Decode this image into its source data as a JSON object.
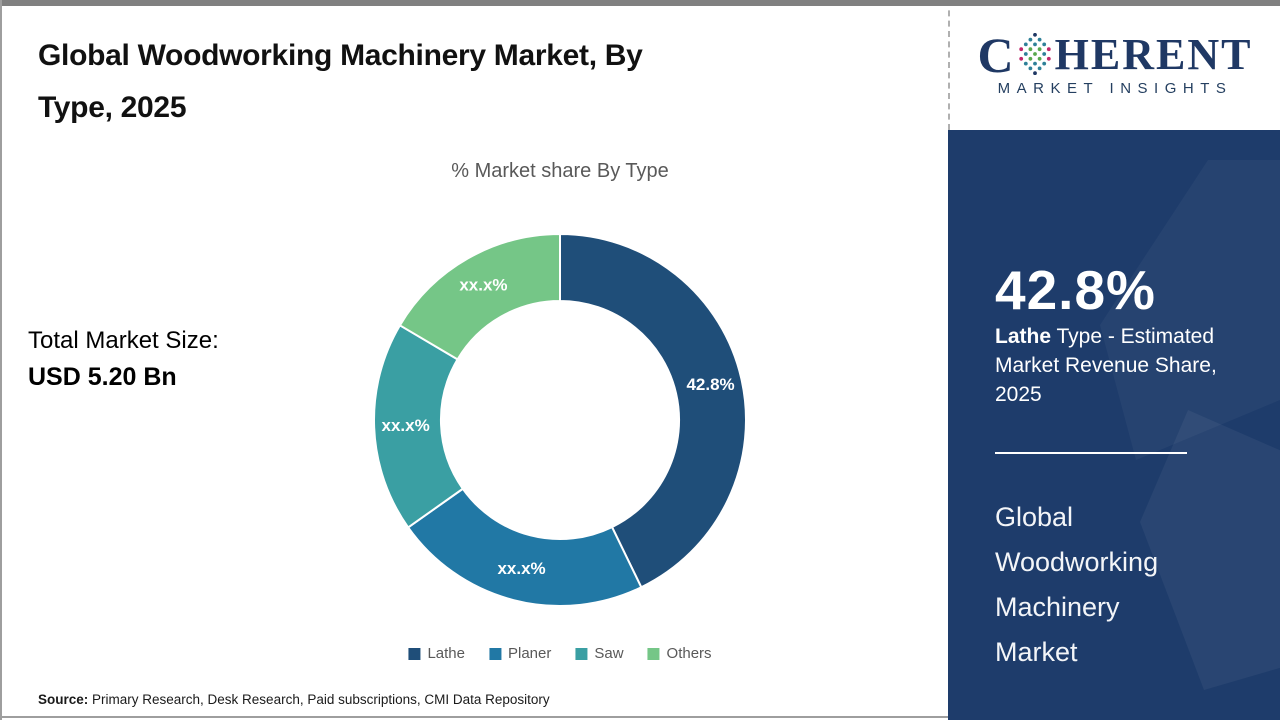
{
  "page": {
    "title_line1": "Global Woodworking Machinery Market, By",
    "title_line2": "Type, 2025"
  },
  "stats": {
    "total_label": "Total Market Size:",
    "total_value": "USD 5.20 Bn"
  },
  "chart_data": {
    "type": "pie",
    "subtype": "donut",
    "title": "% Market share By Type",
    "categories": [
      "Lathe",
      "Planer",
      "Saw",
      "Others"
    ],
    "series": [
      {
        "name": "% Market share By Type",
        "values": [
          42.8,
          22.4,
          18.3,
          16.5
        ]
      }
    ],
    "slice_labels": [
      "42.8%",
      "xx.x%",
      "xx.x%",
      "xx.x%"
    ],
    "colors": [
      "#1f4e79",
      "#2178a5",
      "#3a9fa3",
      "#75c687"
    ],
    "start_angle_deg": 0,
    "donut_hole_ratio": 0.64,
    "legend_position": "bottom",
    "label_color": "#ffffff"
  },
  "sidebar": {
    "logo_c": "C",
    "logo_rest": "HERENT",
    "logo_subtitle": "MARKET INSIGHTS",
    "stat_value": "42.8%",
    "stat_bold": "Lathe",
    "stat_rest": " Type - Estimated Market Revenue Share, 2025",
    "market_name": "Global Woodworking Machinery Market",
    "bg_color": "#1e3c6b",
    "logo_color": "#1f3864"
  },
  "footer": {
    "source_label": "Source:",
    "source_text": " Primary Research, Desk Research, Paid subscriptions, CMI Data Repository"
  }
}
